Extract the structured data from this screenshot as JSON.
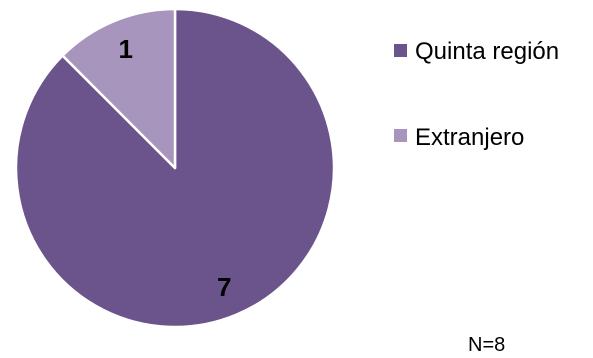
{
  "chart_data": {
    "type": "pie",
    "categories": [
      "Quinta región",
      "Extranjero"
    ],
    "values": [
      7,
      1
    ],
    "colors": [
      "#6b538c",
      "#a795bd"
    ],
    "start_angle_deg": 0,
    "direction": "clockwise",
    "data_labels": [
      "7",
      "1"
    ],
    "legend": {
      "position": "right",
      "entries": [
        "Quinta región",
        "Extranjero"
      ]
    },
    "annotation": "N=8"
  }
}
